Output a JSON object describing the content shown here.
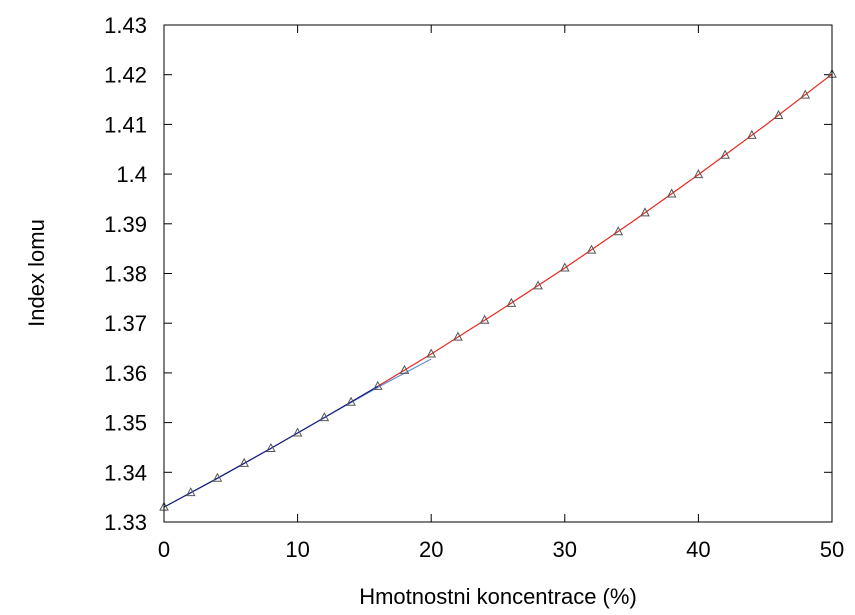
{
  "chart_data": {
    "type": "line",
    "title": "",
    "xlabel": "Hmotnostni koncentrace (%)",
    "ylabel": "Index lomu",
    "xlim": [
      0,
      50
    ],
    "ylim": [
      1.33,
      1.43
    ],
    "xticks": [
      0,
      10,
      20,
      30,
      40,
      50
    ],
    "xtick_labels": [
      "0",
      "10",
      "20",
      "30",
      "40",
      "50"
    ],
    "yticks": [
      1.33,
      1.34,
      1.35,
      1.36,
      1.37,
      1.38,
      1.39,
      1.4,
      1.41,
      1.42,
      1.43
    ],
    "ytick_labels": [
      "1.33",
      "1.34",
      "1.35",
      "1.36",
      "1.37",
      "1.38",
      "1.39",
      "1.4",
      "1.41",
      "1.42",
      "1.43"
    ],
    "grid": false,
    "legend": "none",
    "series": [
      {
        "kind": "points",
        "marker": "triangle",
        "color": "#555555",
        "x": [
          0,
          2,
          4,
          6,
          8,
          10,
          12,
          14,
          16,
          18,
          20,
          22,
          24,
          26,
          28,
          30,
          32,
          34,
          36,
          38,
          40,
          42,
          44,
          46,
          48,
          50
        ],
        "y": [
          1.333,
          1.3359,
          1.3388,
          1.3418,
          1.3448,
          1.3479,
          1.351,
          1.3541,
          1.3573,
          1.3605,
          1.3638,
          1.3672,
          1.3706,
          1.374,
          1.3775,
          1.3811,
          1.3847,
          1.3884,
          1.3922,
          1.396,
          1.3999,
          1.4038,
          1.4078,
          1.4118,
          1.4159,
          1.4201
        ]
      },
      {
        "kind": "line",
        "color": "#e8281e",
        "x": [
          16,
          20,
          25,
          30,
          35,
          40,
          45,
          50
        ],
        "y": [
          1.3573,
          1.3638,
          1.3723,
          1.3811,
          1.3903,
          1.3999,
          1.4098,
          1.4201
        ]
      },
      {
        "kind": "line",
        "color": "#5b8fd6",
        "x": [
          0,
          4,
          8,
          12,
          16,
          20
        ],
        "y": [
          1.333,
          1.3388,
          1.3448,
          1.351,
          1.3571,
          1.3628
        ]
      },
      {
        "kind": "line",
        "color": "#1a1a80",
        "x": [
          0,
          4,
          8,
          12,
          16
        ],
        "y": [
          1.333,
          1.3388,
          1.3448,
          1.351,
          1.3573
        ]
      }
    ]
  }
}
